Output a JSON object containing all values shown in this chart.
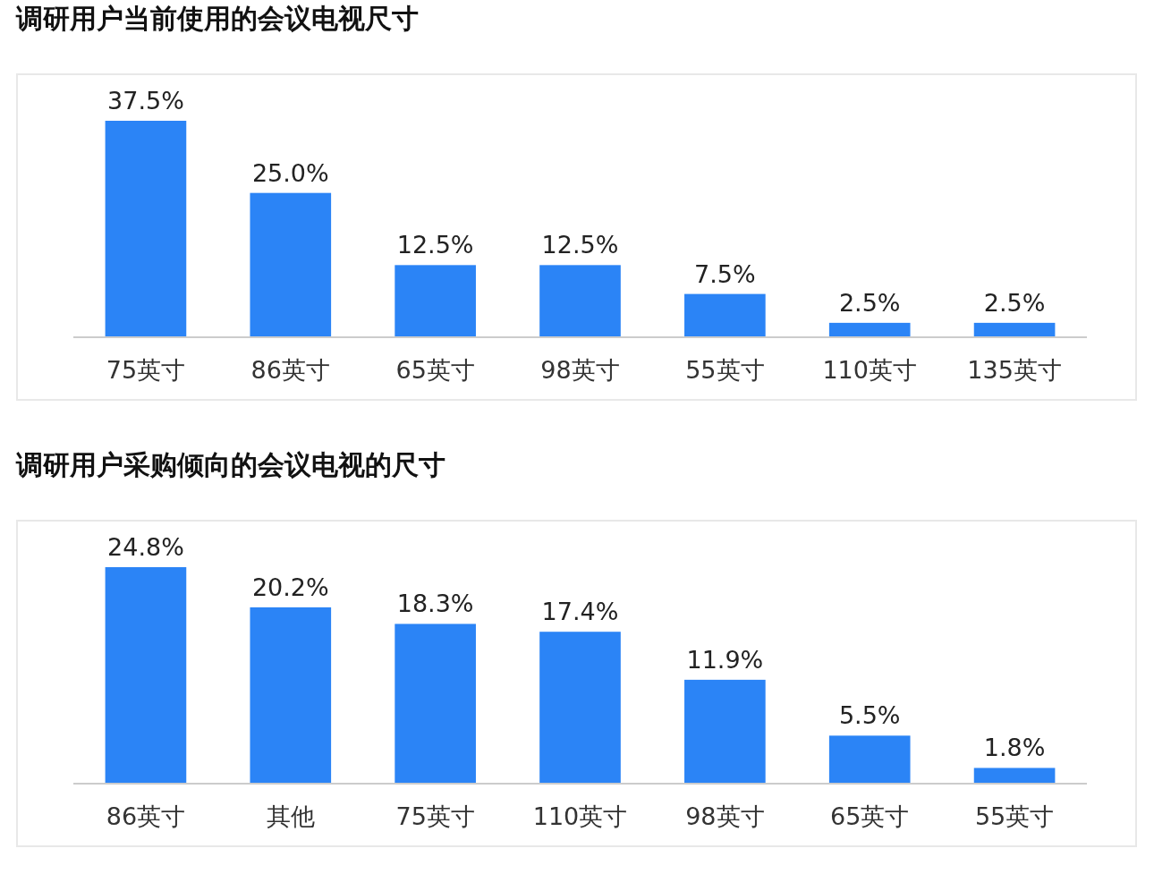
{
  "chart_data": [
    {
      "type": "bar",
      "title": "调研用户当前使用的会议电视尺寸",
      "categories": [
        "75英寸",
        "86英寸",
        "65英寸",
        "98英寸",
        "55英寸",
        "110英寸",
        "135英寸"
      ],
      "values": [
        37.5,
        25.0,
        12.5,
        12.5,
        7.5,
        2.5,
        2.5
      ],
      "value_labels": [
        "37.5%",
        "25.0%",
        "12.5%",
        "12.5%",
        "7.5%",
        "2.5%",
        "2.5%"
      ],
      "color": "#2b84f6"
    },
    {
      "type": "bar",
      "title": "调研用户采购倾向的会议电视的尺寸",
      "categories": [
        "86英寸",
        "其他",
        "75英寸",
        "110英寸",
        "98英寸",
        "65英寸",
        "55英寸"
      ],
      "values": [
        24.8,
        20.2,
        18.3,
        17.4,
        11.9,
        5.5,
        1.8
      ],
      "value_labels": [
        "24.8%",
        "20.2%",
        "18.3%",
        "17.4%",
        "11.9%",
        "5.5%",
        "1.8%"
      ],
      "color": "#2b84f6"
    }
  ]
}
